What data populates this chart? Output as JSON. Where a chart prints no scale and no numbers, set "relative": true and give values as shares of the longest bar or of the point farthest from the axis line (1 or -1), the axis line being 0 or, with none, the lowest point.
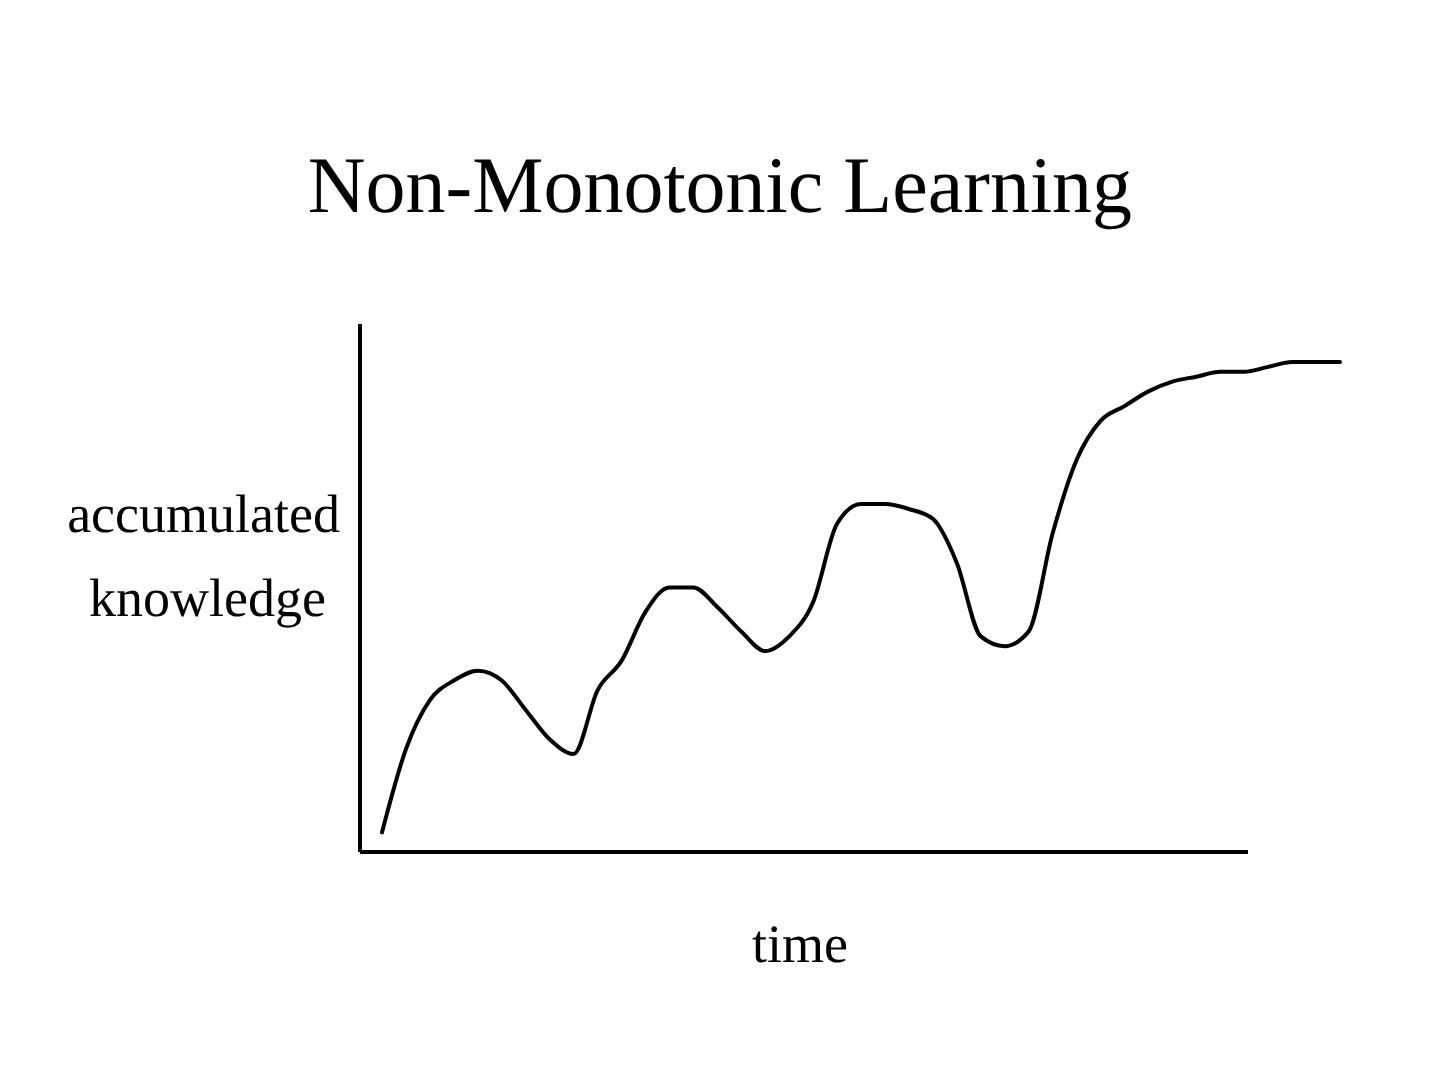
{
  "chart_data": {
    "type": "line",
    "title": "Non-Monotonic Learning",
    "xlabel": "time",
    "ylabel": "accumulated knowledge",
    "relative": true,
    "categories": [
      null,
      null,
      null,
      null,
      null,
      null,
      null,
      null,
      null,
      null,
      null,
      null,
      null,
      null,
      null,
      null,
      null,
      null,
      null,
      null,
      null,
      null,
      null,
      null,
      null,
      null,
      null,
      null,
      null,
      null,
      null,
      null,
      null,
      null,
      null,
      null,
      null,
      null,
      null,
      null,
      null
    ],
    "series": [
      {
        "color": "#000000",
        "values": [
          0.04,
          0.21,
          0.31,
          0.35,
          0.37,
          0.35,
          0.29,
          0.23,
          0.2,
          0.33,
          0.39,
          0.49,
          0.54,
          0.54,
          0.5,
          0.45,
          0.41,
          0.44,
          0.51,
          0.67,
          0.71,
          0.71,
          0.7,
          0.68,
          0.59,
          0.44,
          0.42,
          0.45,
          0.65,
          0.8,
          0.88,
          0.91,
          0.94,
          0.96,
          0.97,
          0.98,
          0.98,
          0.99,
          1,
          1,
          1
        ]
      }
    ]
  }
}
